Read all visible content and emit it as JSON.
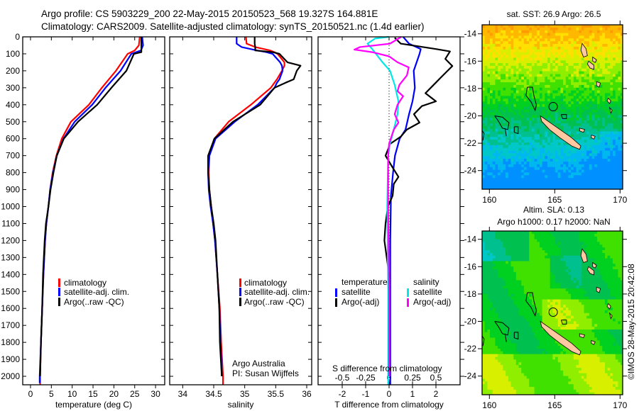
{
  "header": {
    "line1": "Argo profile: CS 5903229_200 22-May-2015 20150523_568 19.327S 164.881E",
    "line2": "Climatology: CARS2009. Satellite-adjusted climatology: synTS_20150521.nc (1.4d earlier)"
  },
  "footer_credit": "©IMOS 28-May-2015 20:42:08",
  "attribution": {
    "line1": "Argo Australia",
    "line2": "PI: Susan Wijffels"
  },
  "chart_data": [
    {
      "type": "line",
      "id": "temperature",
      "xlabel": "temperature (deg C)",
      "ylabel": "",
      "xlim": [
        -1.87,
        32.2
      ],
      "ylim": [
        2050,
        0
      ],
      "xticks": [
        0,
        5,
        10,
        15,
        20,
        25,
        30
      ],
      "yticks": [
        0,
        100,
        200,
        300,
        400,
        500,
        600,
        700,
        800,
        900,
        1000,
        1100,
        1200,
        1300,
        1400,
        1500,
        1600,
        1700,
        1800,
        1900,
        2000
      ],
      "legend": [
        "climatology",
        "satellite-adj. clim.",
        "Argo(..raw -QC)"
      ],
      "series": [
        {
          "name": "climatology",
          "color": "#ff0000",
          "depth": [
            0,
            50,
            80,
            100,
            200,
            300,
            400,
            500,
            600,
            700,
            800,
            900,
            1000,
            1100,
            1200,
            1400,
            1600,
            1800,
            2000,
            2050
          ],
          "values": [
            26.2,
            26.0,
            25.0,
            23.3,
            20.5,
            17.1,
            14.0,
            9.7,
            7.5,
            6.2,
            5.3,
            4.7,
            4.3,
            3.8,
            3.5,
            3.1,
            2.8,
            2.5,
            2.3,
            2.3
          ]
        },
        {
          "name": "satellite-adj. clim.",
          "color": "#0000ff",
          "depth": [
            0,
            50,
            80,
            100,
            200,
            300,
            400,
            500,
            600,
            700,
            800,
            900,
            1000,
            1100,
            1200,
            1400,
            1600,
            1800,
            2000,
            2040
          ],
          "values": [
            26.8,
            27.0,
            26.5,
            24.2,
            21.6,
            18.0,
            14.8,
            10.6,
            7.9,
            6.3,
            5.4,
            4.7,
            4.3,
            3.8,
            3.5,
            3.1,
            2.8,
            2.5,
            2.2,
            2.2
          ]
        },
        {
          "name": "Argo(..raw -QC)",
          "color": "#000000",
          "depth": [
            0,
            50,
            90,
            100,
            200,
            300,
            400,
            500,
            600,
            700,
            800,
            900,
            1000,
            1100,
            1200,
            1400,
            1600,
            1800,
            2000
          ],
          "values": [
            26.6,
            26.6,
            26.6,
            24.8,
            23.0,
            19.4,
            16.0,
            11.4,
            8.0,
            6.3,
            5.5,
            4.8,
            4.3,
            3.7,
            3.4,
            3.0,
            2.8,
            2.5,
            2.3
          ]
        }
      ]
    },
    {
      "type": "line",
      "id": "salinity",
      "xlabel": "salinity",
      "xlim": [
        33.79,
        36.08
      ],
      "ylim": [
        2050,
        0
      ],
      "xticks": [
        34,
        34.5,
        35,
        35.5,
        36
      ],
      "legend": [
        "climatology",
        "satellite-adj. clim.",
        "Argo(..raw -QC)"
      ],
      "series": [
        {
          "name": "climatology",
          "color": "#ff0000",
          "depth": [
            0,
            40,
            60,
            80,
            90,
            100,
            150,
            170,
            200,
            250,
            270,
            300,
            400,
            500,
            600,
            700,
            800,
            900,
            1000,
            1100,
            1200,
            1400,
            1600,
            1800,
            2000,
            2050
          ],
          "values": [
            35.02,
            35.03,
            35.17,
            35.41,
            35.48,
            35.53,
            35.64,
            35.64,
            35.6,
            35.52,
            35.48,
            35.42,
            35.1,
            34.74,
            34.51,
            34.43,
            34.42,
            34.43,
            34.46,
            34.49,
            34.52,
            34.56,
            34.6,
            34.62,
            34.65,
            34.65
          ]
        },
        {
          "name": "satellite-adj. clim.",
          "color": "#0000ff",
          "depth": [
            0,
            40,
            60,
            80,
            90,
            100,
            150,
            170,
            200,
            250,
            270,
            300,
            400,
            500,
            600,
            700,
            800,
            900,
            1000,
            1100,
            1200,
            1400,
            1600,
            1800,
            2000
          ],
          "values": [
            34.87,
            34.87,
            34.95,
            35.2,
            35.35,
            35.45,
            35.57,
            35.6,
            35.61,
            35.56,
            35.52,
            35.48,
            35.21,
            34.84,
            34.53,
            34.43,
            34.41,
            34.42,
            34.45,
            34.49,
            34.52,
            34.56,
            34.59,
            34.61,
            34.63
          ]
        },
        {
          "name": "Argo(..raw -QC)",
          "color": "#000000",
          "depth": [
            0,
            40,
            60,
            80,
            90,
            100,
            150,
            170,
            200,
            250,
            270,
            300,
            400,
            500,
            600,
            700,
            800,
            900,
            1000,
            1100,
            1200,
            1400,
            1600,
            1800,
            2000
          ],
          "values": [
            35.16,
            35.16,
            35.17,
            35.17,
            35.45,
            35.56,
            35.69,
            35.9,
            35.84,
            35.79,
            35.66,
            35.48,
            35.25,
            34.81,
            34.51,
            34.41,
            34.41,
            34.43,
            34.46,
            34.5,
            34.53,
            34.56,
            34.59,
            34.6,
            34.63
          ]
        }
      ]
    },
    {
      "type": "line",
      "id": "difference",
      "xlabel": "T difference from climatology",
      "xlabel2": "S difference from climatology",
      "xlim": [
        -3.03,
        3.03
      ],
      "ylim": [
        2050,
        0
      ],
      "xticks": [
        -2,
        -1,
        0,
        1,
        2
      ],
      "xtick_labels": [
        "-2",
        "-1",
        "0",
        "1",
        "2"
      ],
      "s_xticks": [
        -0.5,
        -0.25,
        0,
        0.25,
        0.5
      ],
      "s_xtick_labels": [
        "-0.5",
        "-0.25",
        "0",
        "0.25",
        "0.5"
      ],
      "s_to_t_scale": 4,
      "legend_headers": [
        "temperature",
        "salinity"
      ],
      "legend": [
        "satellite",
        "Argo(-adj)",
        "satellite",
        "Argo(-adj)"
      ],
      "series": [
        {
          "name": "temperature satellite",
          "axis": "T",
          "color": "#0000ff",
          "depth": [
            0,
            40,
            72,
            100,
            200,
            300,
            380,
            456,
            547,
            600,
            700,
            800,
            936,
            1200,
            1600,
            2000,
            2050
          ],
          "values": [
            0.6,
            0.85,
            1.35,
            1.3,
            1.05,
            1.1,
            1.0,
            0.85,
            0.7,
            0.45,
            0.25,
            0.17,
            0.08,
            0.05,
            0.05,
            0.05,
            0.05
          ]
        },
        {
          "name": "temperature Argo(-adj)",
          "axis": "T",
          "color": "#000000",
          "depth": [
            5,
            40,
            72,
            86,
            130,
            172,
            227,
            283,
            332,
            380,
            408,
            456,
            505,
            547,
            588,
            630,
            700,
            770,
            825,
            867,
            936,
            1000,
            1100,
            1200,
            1300,
            1400,
            1600,
            1800,
            2000
          ],
          "values": [
            0.24,
            0.5,
            2.0,
            2.6,
            2.4,
            2.7,
            2.3,
            1.9,
            1.55,
            2.0,
            1.4,
            1.06,
            1.3,
            0.75,
            0.5,
            0.05,
            -0.15,
            0.15,
            0.4,
            0.2,
            0.15,
            -0.05,
            -0.15,
            -0.2,
            -0.1,
            0,
            0,
            0,
            0
          ]
        },
        {
          "name": "salinity satellite",
          "axis": "S",
          "color": "#00e8e8",
          "depth": [
            0,
            10,
            40,
            72,
            100,
            150,
            200,
            283,
            380,
            456,
            547,
            630,
            700,
            1000,
            1500,
            2050
          ],
          "values": [
            0,
            -0.15,
            -0.23,
            -0.18,
            -0.14,
            -0.07,
            0.01,
            0.06,
            0.1,
            0.09,
            0.05,
            0.01,
            -0.01,
            -0.02,
            -0.01,
            -0.01
          ]
        },
        {
          "name": "salinity Argo(-adj)",
          "axis": "S",
          "color": "#ff00ff",
          "depth": [
            0,
            40,
            60,
            75,
            90,
            115,
            150,
            180,
            227,
            283,
            320,
            350,
            400,
            456,
            505,
            547,
            630,
            700,
            1000,
            1500,
            2000
          ],
          "values": [
            0.13,
            0.01,
            -0.31,
            -0.37,
            -0.18,
            0,
            0.09,
            0.21,
            0.19,
            0.11,
            0.09,
            0.15,
            0.09,
            0.06,
            0.1,
            0.05,
            0,
            -0.01,
            -0.01,
            0,
            0
          ]
        }
      ]
    }
  ],
  "maps": [
    {
      "id": "sst",
      "title_lines": [
        "sat. SST: 26.9 Argo: 26.5"
      ],
      "lon_ticks": [
        160,
        165,
        170
      ],
      "lon_labels": [
        "160",
        "165",
        "170"
      ],
      "lat_ticks": [
        -14,
        -16,
        -18,
        -20,
        -22,
        -24
      ],
      "lat_labels": [
        "-14",
        "-16",
        "-18",
        "-20",
        "-22",
        "-24"
      ],
      "argo_position": {
        "lon": 164.881,
        "lat": -19.327
      }
    },
    {
      "id": "sla",
      "title_lines": [
        "Altim. SLA: 0.13",
        "Argo h1000: 0.17 h2000: NaN"
      ],
      "lon_ticks": [
        160,
        165,
        170
      ],
      "lon_labels": [
        "160",
        "165",
        "170"
      ],
      "lat_ticks": [
        -14,
        -16,
        -18,
        -20,
        -22,
        -24
      ],
      "lat_labels": [
        "-14",
        "-16",
        "-18",
        "-20",
        "-22",
        "-24"
      ],
      "argo_position": {
        "lon": 164.881,
        "lat": -19.327
      }
    }
  ]
}
